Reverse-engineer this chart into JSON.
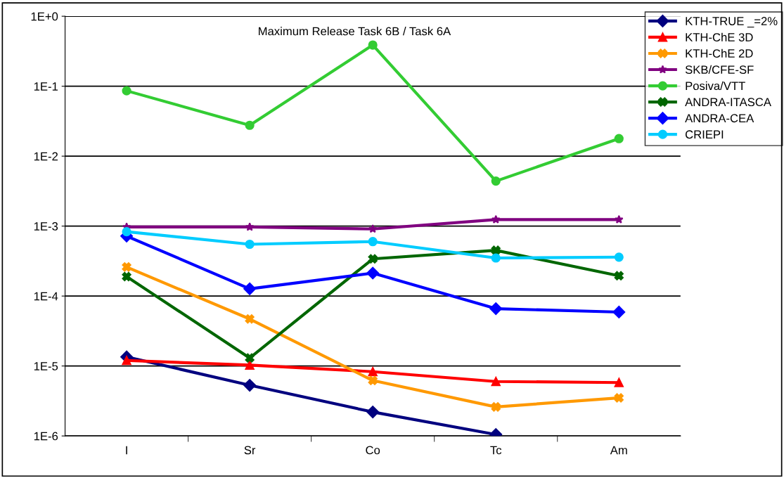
{
  "chart_data": {
    "type": "line",
    "title": "Maximum Release Task 6B / Task 6A",
    "categories": [
      "I",
      "Sr",
      "Co",
      "Tc",
      "Am"
    ],
    "log": true,
    "ylim": [
      1e-06,
      1
    ],
    "yticks": [
      {
        "value": 1e-06,
        "label": "1E-6"
      },
      {
        "value": 1e-05,
        "label": "1E-5"
      },
      {
        "value": 0.0001,
        "label": "1E-4"
      },
      {
        "value": 0.001,
        "label": "1E-3"
      },
      {
        "value": 0.01,
        "label": "1E-2"
      },
      {
        "value": 0.1,
        "label": "1E-1"
      },
      {
        "value": 1,
        "label": "1E+0"
      }
    ],
    "grid": "y",
    "legend": "top right",
    "line_style": "solid",
    "series": [
      {
        "name": "KTH-TRUE _=2%",
        "color": "#00007f",
        "marker": "diamond",
        "values": [
          1.35e-05,
          5.3e-06,
          2.2e-06,
          1.05e-06,
          null
        ]
      },
      {
        "name": "KTH-ChE 3D",
        "color": "#ff0000",
        "marker": "triangle",
        "values": [
          1.2e-05,
          1.03e-05,
          8.3e-06,
          6e-06,
          5.8e-06
        ]
      },
      {
        "name": "KTH-ChE 2D",
        "color": "#ff9900",
        "marker": "cross",
        "values": [
          0.00026,
          4.7e-05,
          6.2e-06,
          2.6e-06,
          3.5e-06
        ]
      },
      {
        "name": "SKB/CFE-SF",
        "color": "#800080",
        "marker": "star",
        "values": [
          0.00097,
          0.00097,
          0.00091,
          0.00124,
          0.00124
        ]
      },
      {
        "name": "Posiva/VTT",
        "color": "#33cc33",
        "marker": "circle",
        "values": [
          0.086,
          0.0276,
          0.388,
          0.0044,
          0.0178
        ]
      },
      {
        "name": "ANDRA-ITASCA",
        "color": "#006600",
        "marker": "cross",
        "values": [
          0.00019,
          1.3e-05,
          0.00034,
          0.00045,
          0.000195
        ]
      },
      {
        "name": "ANDRA-CEA",
        "color": "#0000ff",
        "marker": "diamond",
        "values": [
          0.00072,
          0.000127,
          0.000213,
          6.6e-05,
          5.9e-05
        ]
      },
      {
        "name": "CRIEPI",
        "color": "#00ccff",
        "marker": "circle",
        "values": [
          0.00083,
          0.00055,
          0.0006,
          0.00035,
          0.00036
        ]
      }
    ]
  }
}
